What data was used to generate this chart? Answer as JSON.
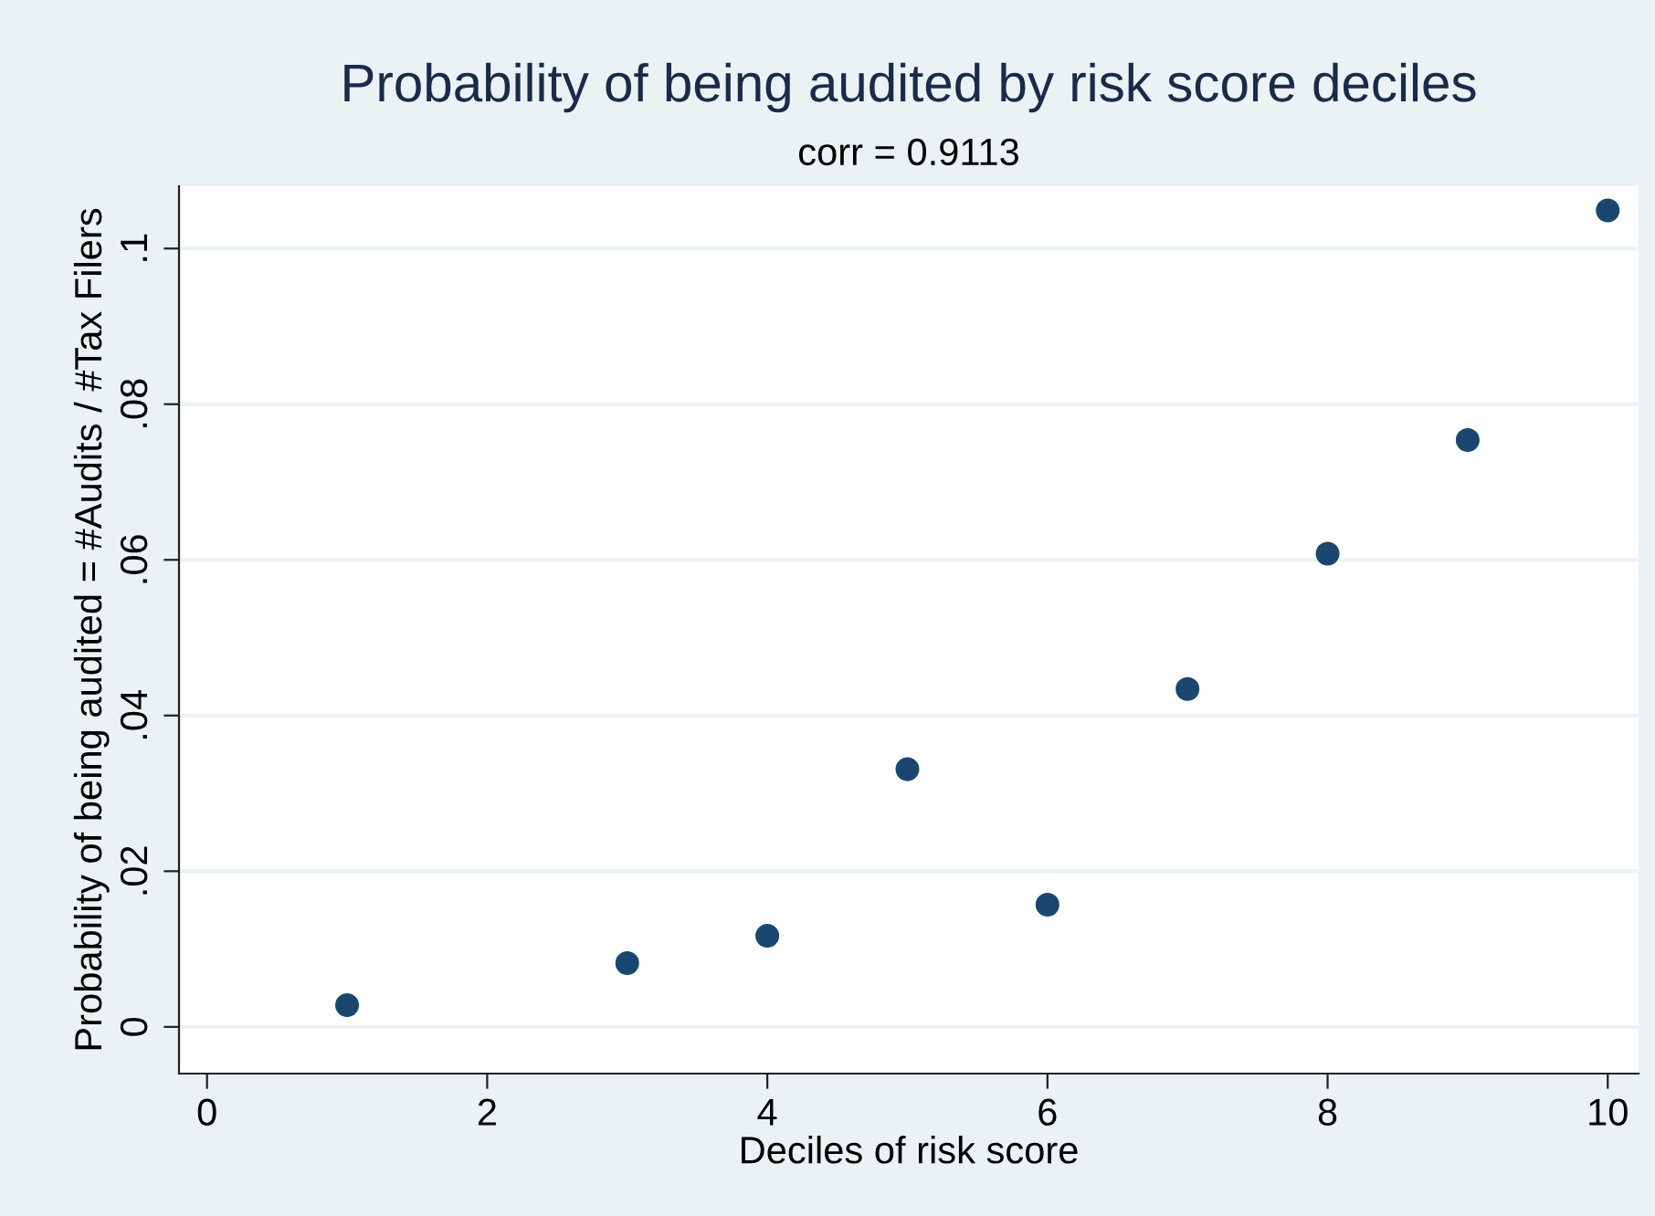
{
  "chart_data": {
    "type": "scatter",
    "title": "Probability of being audited by risk score deciles",
    "subtitle": "corr = 0.9113",
    "xlabel": "Deciles of risk score",
    "ylabel": "Probability of being audited = #Audits / #Tax Filers",
    "x": [
      1,
      3,
      4,
      5,
      6,
      7,
      8,
      9,
      10
    ],
    "series": [
      {
        "color": "#1a476f",
        "values": [
          0.0028,
          0.0082,
          0.0117,
          0.0331,
          0.0157,
          0.0434,
          0.0608,
          0.0754,
          0.1049
        ]
      }
    ],
    "xlim": [
      -0.2,
      10.22
    ],
    "ylim": [
      -0.006,
      0.108
    ],
    "xticks": [
      0,
      2,
      4,
      6,
      8,
      10
    ],
    "yticks": [
      0,
      {
        "value": 0.02,
        "label": ".02"
      },
      {
        "value": 0.04,
        "label": ".04"
      },
      {
        "value": 0.06,
        "label": ".06"
      },
      {
        "value": 0.08,
        "label": ".08"
      },
      {
        "value": 0.1,
        "label": ".1"
      }
    ],
    "grid": "y",
    "marker": "circle",
    "legend": false
  }
}
